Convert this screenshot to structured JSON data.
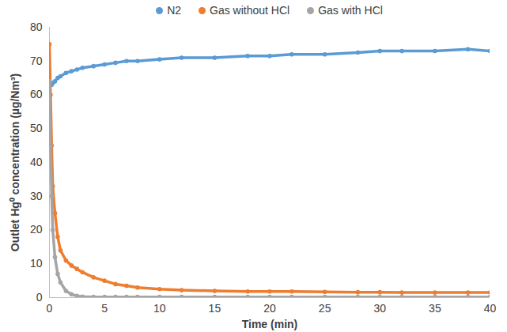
{
  "chart_data": {
    "type": "line",
    "marker": "circle",
    "legend": "top",
    "grid": false,
    "x_label": "Time (min)",
    "y_label": "Outlet Hg⁰ concentration (µg/Nm³)",
    "x": [
      0,
      0.1,
      0.2,
      0.3,
      0.5,
      0.75,
      1,
      1.5,
      2,
      2.5,
      3,
      4,
      5,
      6,
      7,
      8,
      10,
      12,
      15,
      18,
      20,
      22,
      25,
      28,
      30,
      32,
      35,
      38,
      40
    ],
    "xlim": [
      0,
      40
    ],
    "xticks": [
      0,
      5,
      10,
      15,
      20,
      25,
      30,
      35,
      40
    ],
    "ylim": [
      0,
      80
    ],
    "yticks": [
      0,
      10,
      20,
      30,
      40,
      50,
      60,
      70,
      80
    ],
    "series": [
      {
        "name": "N2",
        "color": "#5b9bd5",
        "values": [
          64,
          63.5,
          63,
          63.5,
          64,
          65,
          65.5,
          66.5,
          67,
          67.5,
          68,
          68.5,
          69,
          69.5,
          70,
          70,
          70.5,
          71,
          71,
          71.5,
          71.5,
          72,
          72,
          72.5,
          73,
          73,
          73,
          73.5,
          73
        ]
      },
      {
        "name": "Gas without HCl",
        "color": "#ed7d31",
        "values": [
          75,
          60,
          45,
          33,
          25,
          18,
          14,
          11,
          9.5,
          8.5,
          7.5,
          6,
          5,
          4,
          3.5,
          3,
          2.5,
          2.2,
          2,
          1.8,
          1.8,
          1.8,
          1.7,
          1.6,
          1.6,
          1.5,
          1.5,
          1.5,
          1.5
        ]
      },
      {
        "name": "Gas with HCl",
        "color": "#a5a5a5",
        "values": [
          64,
          45,
          30,
          20,
          12,
          7,
          4.5,
          2,
          1,
          0.5,
          0.3,
          0.2,
          0.2,
          0.2,
          0.2,
          0.2,
          0.2,
          0.2,
          0.2,
          0.2,
          0.2,
          0.2,
          0.2,
          0.2,
          0.2,
          0.2,
          0.2,
          0.2,
          0.2
        ]
      }
    ]
  }
}
